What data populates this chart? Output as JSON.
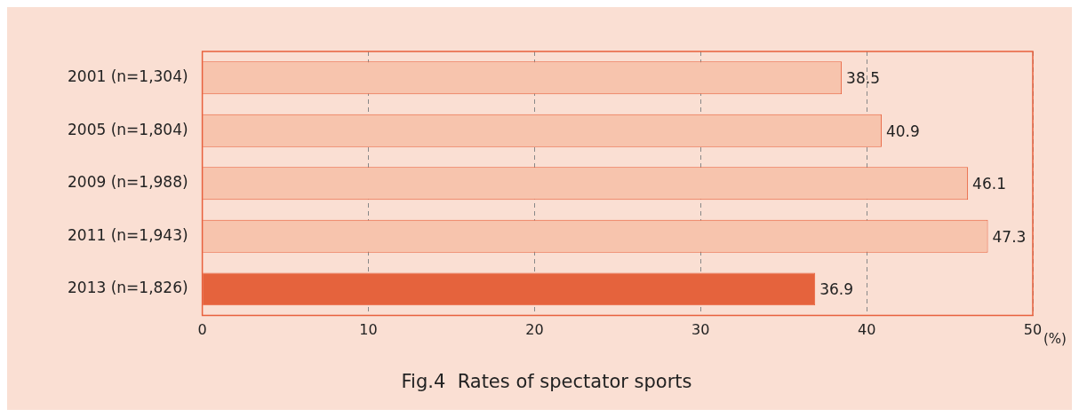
{
  "chart_data": {
    "type": "bar",
    "orientation": "horizontal",
    "title": "Fig.4  Rates of spectator sports",
    "xlabel": "(%)",
    "categories": [
      "2001 (n=1,304)",
      "2005 (n=1,804)",
      "2009 (n=1,988)",
      "2011 (n=1,943)",
      "2013 (n=1,826)"
    ],
    "values": [
      38.5,
      40.9,
      46.1,
      47.3,
      36.9
    ],
    "colors": [
      "#f7c4ad",
      "#f7c4ad",
      "#f7c4ad",
      "#f7c4ad",
      "#e5633d"
    ],
    "xlim": [
      0,
      50
    ],
    "xticks": [
      0,
      10,
      20,
      30,
      40,
      50
    ],
    "grid": "x",
    "data_labels": true
  }
}
